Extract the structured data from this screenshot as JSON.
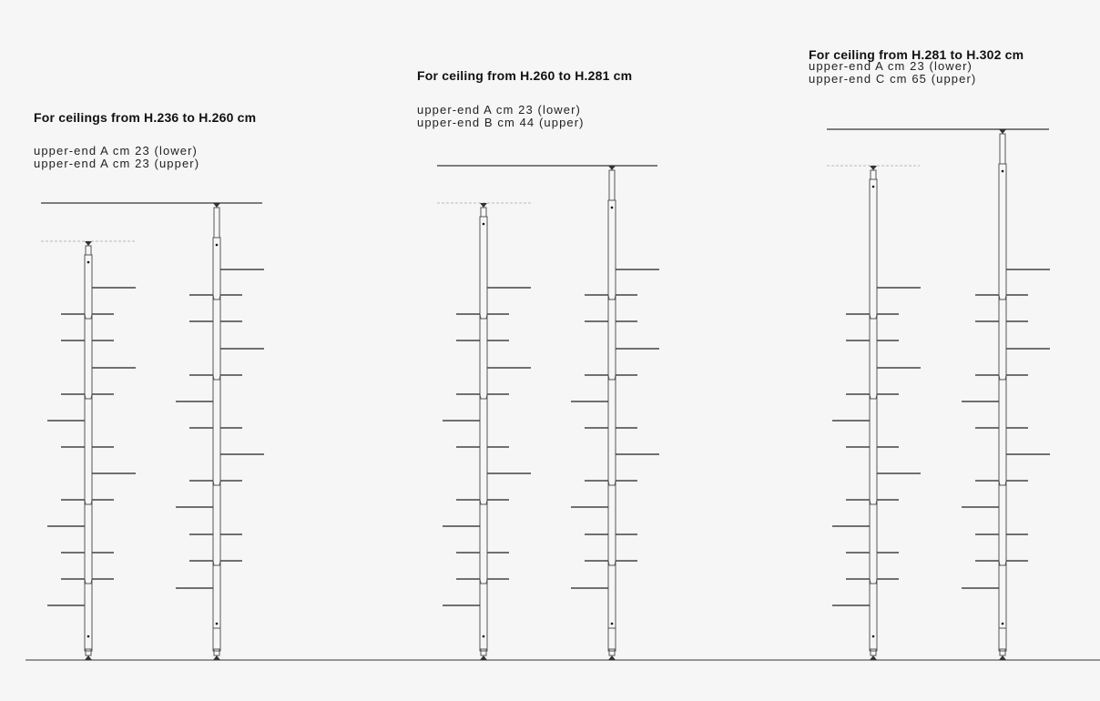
{
  "configurations": [
    {
      "heading": "For ceilings from H.236 to H.260 cm",
      "lines": [
        "upper-end A cm 23 (lower)",
        "upper-end A cm 23 (upper)"
      ]
    },
    {
      "heading": "For ceiling from H.260 to H.281 cm",
      "lines": [
        "upper-end A cm 23 (lower)",
        "upper-end B cm 44 (upper)"
      ]
    },
    {
      "heading": "For ceiling from H.281 to H.302 cm",
      "lines": [
        "upper-end A cm 23 (lower)",
        "upper-end C cm 65 (upper)"
      ]
    }
  ],
  "colors": {
    "background": "#f6f6f6",
    "line": "#555555",
    "dashed": "#bbbbbb"
  }
}
